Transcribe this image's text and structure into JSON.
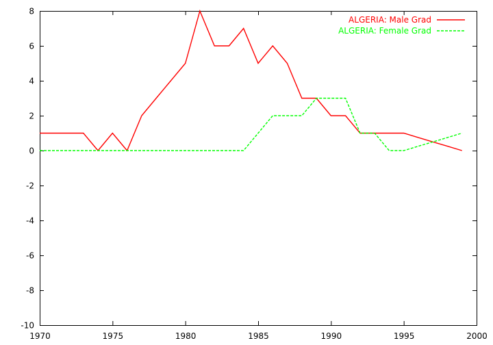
{
  "chart_data": {
    "type": "line",
    "title": "",
    "xlabel": "",
    "ylabel": "",
    "xlim": [
      1970,
      2000
    ],
    "ylim": [
      -10,
      8
    ],
    "x_ticks": [
      1970,
      1975,
      1980,
      1985,
      1990,
      1995,
      2000
    ],
    "y_ticks": [
      -10,
      -8,
      -6,
      -4,
      -2,
      0,
      2,
      4,
      6,
      8
    ],
    "grid": false,
    "legend_position": "top-right",
    "series": [
      {
        "name": "ALGERIA: Male Grad",
        "color": "#ff0000",
        "dash": "solid",
        "x": [
          1970,
          1971,
          1972,
          1973,
          1974,
          1975,
          1976,
          1977,
          1978,
          1979,
          1980,
          1981,
          1982,
          1983,
          1984,
          1985,
          1986,
          1987,
          1988,
          1989,
          1990,
          1991,
          1992,
          1993,
          1994,
          1995,
          1996,
          1997,
          1998,
          1999
        ],
        "y": [
          1,
          1,
          1,
          1,
          0,
          1,
          0,
          2,
          3,
          4,
          5,
          8,
          6,
          6,
          7,
          5,
          6,
          5,
          3,
          3,
          2,
          2,
          1,
          1,
          1,
          1,
          0.75,
          0.5,
          0.25,
          0
        ]
      },
      {
        "name": "ALGERIA: Female Grad",
        "color": "#00ff00",
        "dash": "dashed",
        "x": [
          1970,
          1971,
          1972,
          1973,
          1974,
          1975,
          1976,
          1977,
          1978,
          1979,
          1980,
          1981,
          1982,
          1983,
          1984,
          1985,
          1986,
          1987,
          1988,
          1989,
          1990,
          1991,
          1992,
          1993,
          1994,
          1995,
          1996,
          1997,
          1998,
          1999
        ],
        "y": [
          0,
          0,
          0,
          0,
          0,
          0,
          0,
          0,
          0,
          0,
          0,
          0,
          0,
          0,
          0,
          1,
          2,
          2,
          2,
          3,
          3,
          3,
          1,
          1,
          0,
          0,
          0.25,
          0.5,
          0.75,
          1
        ]
      }
    ]
  }
}
